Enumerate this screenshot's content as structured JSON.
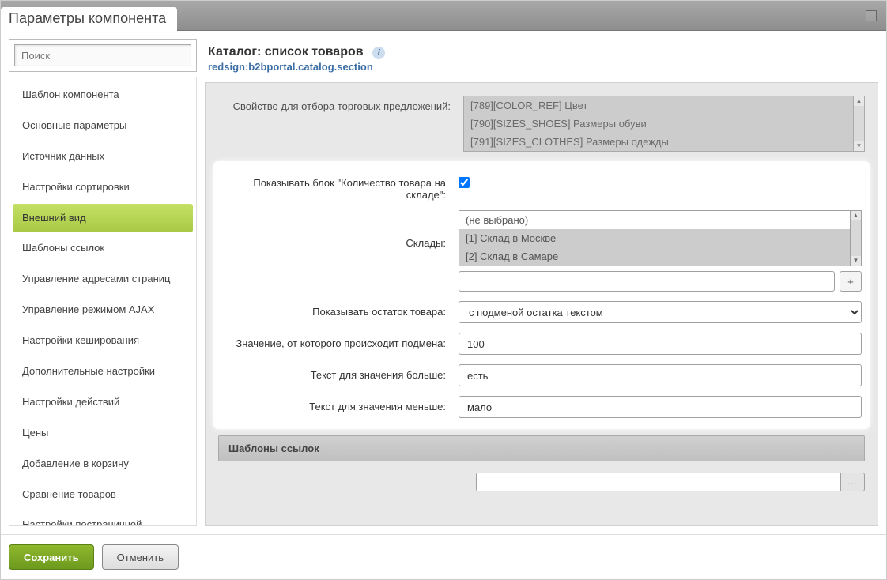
{
  "titlebar": {
    "title": "Параметры компонента"
  },
  "sidebar": {
    "search_placeholder": "Поиск",
    "items": [
      "Шаблон компонента",
      "Основные параметры",
      "Источник данных",
      "Настройки сортировки",
      "Внешний вид",
      "Шаблоны ссылок",
      "Управление адресами страниц",
      "Управление режимом AJAX",
      "Настройки кеширования",
      "Дополнительные настройки",
      "Настройки действий",
      "Цены",
      "Добавление в корзину",
      "Сравнение товаров",
      "Настройки постраничной"
    ],
    "active_index": 4
  },
  "header": {
    "title": "Каталог: список товаров",
    "subtitle": "redsign:b2bportal.catalog.section"
  },
  "form": {
    "offer_property": {
      "label": "Свойство для отбора торговых предложений:",
      "options": [
        "[789][COLOR_REF] Цвет",
        "[790][SIZES_SHOES] Размеры обуви",
        "[791][SIZES_CLOTHES] Размеры одежды"
      ]
    },
    "show_stock_block": {
      "label": "Показывать блок \"Количество товара на складе\":",
      "checked": true
    },
    "stores": {
      "label": "Склады:",
      "options": [
        "(не выбрано)",
        "[1] Склад в Москве",
        "[2] Склад в Самаре"
      ],
      "selected": [
        1,
        2
      ],
      "plus": "+"
    },
    "show_remainder": {
      "label": "Показывать остаток товара:",
      "value": "с подменой остатка текстом"
    },
    "threshold": {
      "label": "Значение, от которого происходит подмена:",
      "value": "100"
    },
    "text_more": {
      "label": "Текст для значения больше:",
      "value": "есть"
    },
    "text_less": {
      "label": "Текст для значения меньше:",
      "value": "мало"
    },
    "section_links": "Шаблоны ссылок"
  },
  "footer": {
    "save": "Сохранить",
    "cancel": "Отменить"
  },
  "colors": {
    "active_nav": "#b8d754",
    "primary_btn": "#7aa622",
    "link": "#3a6ea5"
  }
}
